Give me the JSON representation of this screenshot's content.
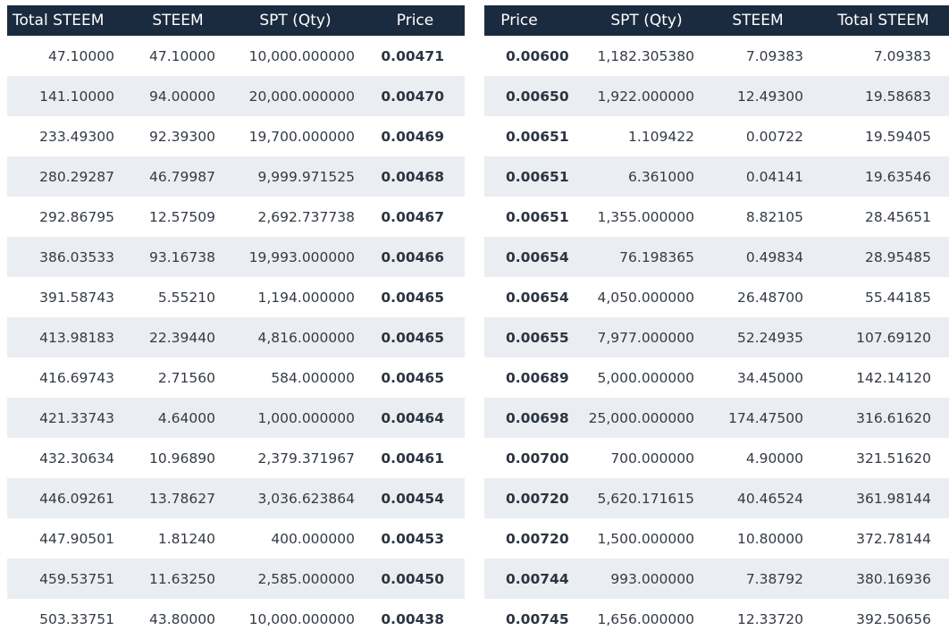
{
  "bids": {
    "headers": [
      "Total STEEM",
      "STEEM",
      "SPT (Qty)",
      "Price"
    ],
    "rows": [
      [
        "47.10000",
        "47.10000",
        "10,000.000000",
        "0.00471"
      ],
      [
        "141.10000",
        "94.00000",
        "20,000.000000",
        "0.00470"
      ],
      [
        "233.49300",
        "92.39300",
        "19,700.000000",
        "0.00469"
      ],
      [
        "280.29287",
        "46.79987",
        "9,999.971525",
        "0.00468"
      ],
      [
        "292.86795",
        "12.57509",
        "2,692.737738",
        "0.00467"
      ],
      [
        "386.03533",
        "93.16738",
        "19,993.000000",
        "0.00466"
      ],
      [
        "391.58743",
        "5.55210",
        "1,194.000000",
        "0.00465"
      ],
      [
        "413.98183",
        "22.39440",
        "4,816.000000",
        "0.00465"
      ],
      [
        "416.69743",
        "2.71560",
        "584.000000",
        "0.00465"
      ],
      [
        "421.33743",
        "4.64000",
        "1,000.000000",
        "0.00464"
      ],
      [
        "432.30634",
        "10.96890",
        "2,379.371967",
        "0.00461"
      ],
      [
        "446.09261",
        "13.78627",
        "3,036.623864",
        "0.00454"
      ],
      [
        "447.90501",
        "1.81240",
        "400.000000",
        "0.00453"
      ],
      [
        "459.53751",
        "11.63250",
        "2,585.000000",
        "0.00450"
      ],
      [
        "503.33751",
        "43.80000",
        "10,000.000000",
        "0.00438"
      ]
    ]
  },
  "asks": {
    "headers": [
      "Price",
      "SPT (Qty)",
      "STEEM",
      "Total STEEM"
    ],
    "rows": [
      [
        "0.00600",
        "1,182.305380",
        "7.09383",
        "7.09383"
      ],
      [
        "0.00650",
        "1,922.000000",
        "12.49300",
        "19.58683"
      ],
      [
        "0.00651",
        "1.109422",
        "0.00722",
        "19.59405"
      ],
      [
        "0.00651",
        "6.361000",
        "0.04141",
        "19.63546"
      ],
      [
        "0.00651",
        "1,355.000000",
        "8.82105",
        "28.45651"
      ],
      [
        "0.00654",
        "76.198365",
        "0.49834",
        "28.95485"
      ],
      [
        "0.00654",
        "4,050.000000",
        "26.48700",
        "55.44185"
      ],
      [
        "0.00655",
        "7,977.000000",
        "52.24935",
        "107.69120"
      ],
      [
        "0.00689",
        "5,000.000000",
        "34.45000",
        "142.14120"
      ],
      [
        "0.00698",
        "25,000.000000",
        "174.47500",
        "316.61620"
      ],
      [
        "0.00700",
        "700.000000",
        "4.90000",
        "321.51620"
      ],
      [
        "0.00720",
        "5,620.171615",
        "40.46524",
        "361.98144"
      ],
      [
        "0.00720",
        "1,500.000000",
        "10.80000",
        "372.78144"
      ],
      [
        "0.00744",
        "993.000000",
        "7.38792",
        "380.16936"
      ],
      [
        "0.00745",
        "1,656.000000",
        "12.33720",
        "392.50656"
      ]
    ]
  },
  "colors": {
    "header_bg": "#1b2b3f",
    "header_text": "#ffffff",
    "row_alt_bg": "#eaeef2",
    "text": "#333a45"
  }
}
